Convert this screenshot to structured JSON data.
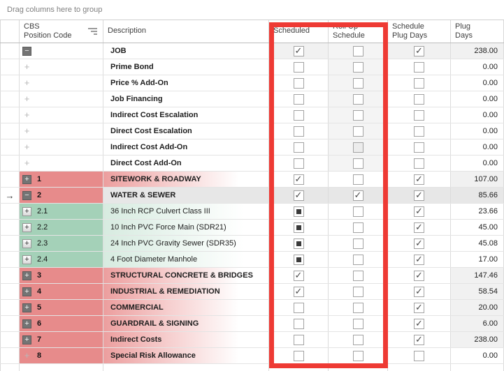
{
  "group_panel": {
    "label": "Drag columns here to group"
  },
  "columns": [
    {
      "id": "position",
      "label": "CBS\nPosition Code",
      "sorted": true
    },
    {
      "id": "description",
      "label": "Description"
    },
    {
      "id": "scheduled",
      "label": "Scheduled"
    },
    {
      "id": "rollup",
      "label": "Roll Up\nSchedule"
    },
    {
      "id": "plug",
      "label": "Schedule\nPlug Days"
    },
    {
      "id": "days",
      "label": "Plug\nDays"
    }
  ],
  "icons": {
    "row_indicator": "→",
    "expand_plus": "+",
    "collapse_minus": "−",
    "sort_icon_name": "sort-ascending-icon"
  },
  "highlight": {
    "color": "#ee3a34",
    "highlighted_columns": [
      "Scheduled",
      "Roll Up Schedule"
    ]
  },
  "colors": {
    "parent_row_band": "#e78b8b",
    "child_row_band": "#a4d1b8",
    "selected_row": "#e7e7e7",
    "readonly_cell": "#f1f1f1"
  },
  "rows": [
    {
      "code": "",
      "description": "JOB",
      "band": "none",
      "bold": true,
      "expander": "minus-dark",
      "selected": false,
      "scheduled": "checked",
      "rollup": "unchecked",
      "plug": "checked",
      "days": "238.00",
      "gray": [
        "scheduled",
        "rollup",
        "plug",
        "days"
      ]
    },
    {
      "code": "",
      "description": "Prime Bond",
      "band": "none",
      "bold": true,
      "expander": "plus-faint",
      "selected": false,
      "scheduled": "unchecked",
      "rollup": "unchecked",
      "plug": "unchecked",
      "days": "0.00",
      "gray": [
        "rollup"
      ]
    },
    {
      "code": "",
      "description": "Price % Add-On",
      "band": "none",
      "bold": true,
      "expander": "plus-faint",
      "selected": false,
      "scheduled": "unchecked",
      "rollup": "unchecked",
      "plug": "unchecked",
      "days": "0.00",
      "gray": [
        "rollup"
      ]
    },
    {
      "code": "",
      "description": "Job Financing",
      "band": "none",
      "bold": true,
      "expander": "plus-faint",
      "selected": false,
      "scheduled": "unchecked",
      "rollup": "unchecked",
      "plug": "unchecked",
      "days": "0.00",
      "gray": [
        "rollup"
      ]
    },
    {
      "code": "",
      "description": "Indirect Cost Escalation",
      "band": "none",
      "bold": true,
      "expander": "plus-faint",
      "selected": false,
      "scheduled": "unchecked",
      "rollup": "unchecked",
      "plug": "unchecked",
      "days": "0.00",
      "gray": [
        "rollup"
      ]
    },
    {
      "code": "",
      "description": "Direct Cost Escalation",
      "band": "none",
      "bold": true,
      "expander": "plus-faint",
      "selected": false,
      "scheduled": "unchecked",
      "rollup": "unchecked",
      "plug": "unchecked",
      "days": "0.00",
      "gray": [
        "rollup"
      ]
    },
    {
      "code": "",
      "description": "Indirect Cost Add-On",
      "band": "none",
      "bold": true,
      "expander": "plus-faint",
      "selected": false,
      "scheduled": "unchecked",
      "rollup": "disabled",
      "plug": "unchecked",
      "days": "0.00",
      "gray": [
        "rollup"
      ]
    },
    {
      "code": "",
      "description": "Direct Cost Add-On",
      "band": "none",
      "bold": true,
      "expander": "plus-faint",
      "selected": false,
      "scheduled": "unchecked",
      "rollup": "unchecked",
      "plug": "unchecked",
      "days": "0.00",
      "gray": [
        "rollup"
      ]
    },
    {
      "code": "1",
      "description": "SITEWORK & ROADWAY",
      "band": "red",
      "bold": true,
      "expander": "plus-dark",
      "selected": false,
      "scheduled": "checked",
      "rollup": "unchecked",
      "plug": "checked",
      "days": "107.00",
      "gray": [
        "days"
      ]
    },
    {
      "code": "2",
      "description": "WATER & SEWER",
      "band": "red",
      "bold": true,
      "expander": "minus-dark",
      "selected": true,
      "scheduled": "checked",
      "rollup": "checked",
      "plug": "checked",
      "days": "85.66",
      "gray": [
        "days"
      ]
    },
    {
      "code": "2.1",
      "description": "36 Inch RCP Culvert Class III",
      "band": "green",
      "bold": false,
      "expander": "plus-light",
      "selected": false,
      "scheduled": "indeterminate",
      "rollup": "unchecked",
      "plug": "checked",
      "days": "23.66",
      "gray": []
    },
    {
      "code": "2.2",
      "description": "10 Inch PVC Force Main (SDR21)",
      "band": "green",
      "bold": false,
      "expander": "plus-light",
      "selected": false,
      "scheduled": "indeterminate",
      "rollup": "unchecked",
      "plug": "checked",
      "days": "45.00",
      "gray": []
    },
    {
      "code": "2.3",
      "description": "24 Inch PVC Gravity Sewer (SDR35)",
      "band": "green",
      "bold": false,
      "expander": "plus-light",
      "selected": false,
      "scheduled": "indeterminate",
      "rollup": "unchecked",
      "plug": "checked",
      "days": "45.08",
      "gray": []
    },
    {
      "code": "2.4",
      "description": "4 Foot Diameter Manhole",
      "band": "green",
      "bold": false,
      "expander": "plus-light",
      "selected": false,
      "scheduled": "indeterminate",
      "rollup": "unchecked",
      "plug": "checked",
      "days": "17.00",
      "gray": []
    },
    {
      "code": "3",
      "description": "STRUCTURAL CONCRETE & BRIDGES",
      "band": "red",
      "bold": true,
      "expander": "plus-dark",
      "selected": false,
      "scheduled": "checked",
      "rollup": "unchecked",
      "plug": "checked",
      "days": "147.46",
      "gray": [
        "days"
      ]
    },
    {
      "code": "4",
      "description": "INDUSTRIAL & REMEDIATION",
      "band": "red",
      "bold": true,
      "expander": "plus-dark",
      "selected": false,
      "scheduled": "checked",
      "rollup": "unchecked",
      "plug": "checked",
      "days": "58.54",
      "gray": [
        "days"
      ]
    },
    {
      "code": "5",
      "description": "COMMERCIAL",
      "band": "red",
      "bold": true,
      "expander": "plus-dark",
      "selected": false,
      "scheduled": "unchecked",
      "rollup": "unchecked",
      "plug": "checked",
      "days": "20.00",
      "gray": [
        "days"
      ]
    },
    {
      "code": "6",
      "description": "GUARDRAIL & SIGNING",
      "band": "red",
      "bold": true,
      "expander": "plus-dark",
      "selected": false,
      "scheduled": "unchecked",
      "rollup": "unchecked",
      "plug": "checked",
      "days": "6.00",
      "gray": [
        "days"
      ]
    },
    {
      "code": "7",
      "description": "Indirect Costs",
      "band": "red",
      "bold": true,
      "expander": "plus-dark",
      "selected": false,
      "scheduled": "unchecked",
      "rollup": "unchecked",
      "plug": "checked",
      "days": "238.00",
      "gray": [
        "days"
      ]
    },
    {
      "code": "8",
      "description": "Special Risk Allowance",
      "band": "red",
      "bold": true,
      "expander": "plus-faint",
      "selected": false,
      "scheduled": "unchecked",
      "rollup": "unchecked",
      "plug": "unchecked",
      "days": "0.00",
      "gray": []
    }
  ]
}
